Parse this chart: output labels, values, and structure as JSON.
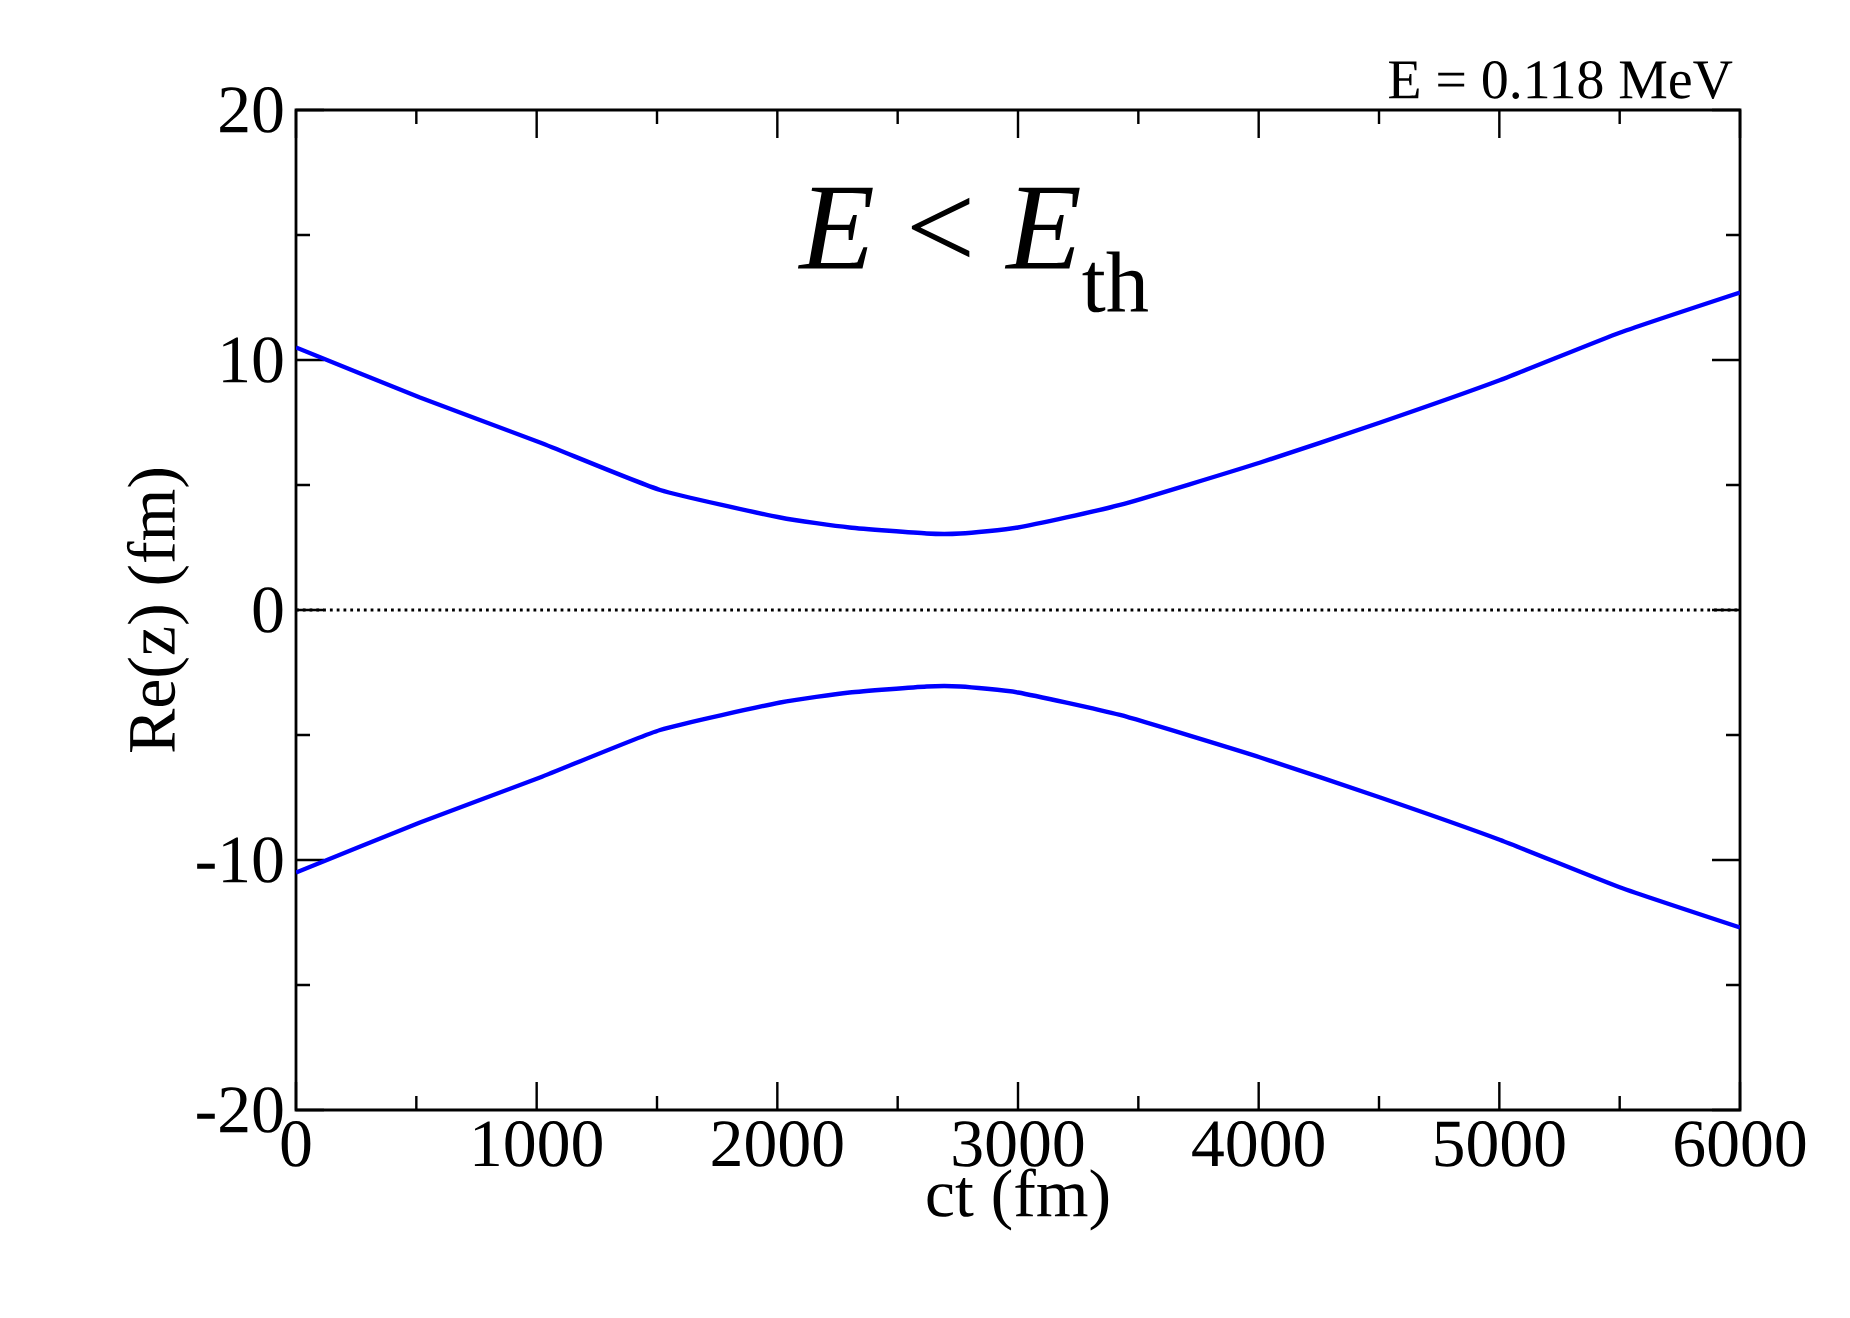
{
  "chart_data": {
    "type": "line",
    "title": "E = 0.118 MeV",
    "xlabel": "ct   (fm)",
    "ylabel": "Re(z)   (fm)",
    "annotations": [
      "*E* < *E*$_{th}$"
    ],
    "xlim": [
      0,
      6000
    ],
    "ylim": [
      -20,
      20
    ],
    "xticks": [
      0,
      1000,
      2000,
      3000,
      4000,
      5000,
      6000
    ],
    "yticks": [
      -20,
      -10,
      0,
      10,
      20
    ],
    "grid": false,
    "marker": "none",
    "line_style": "solid",
    "ref_lines": [
      {
        "axis": "y",
        "value": 0,
        "color": "#000000",
        "line_style": "dotted"
      }
    ],
    "series": [
      {
        "color": "#0000ff",
        "x": [
          0,
          515,
          1014,
          1513,
          2012,
          2300,
          2620,
          2760,
          3000,
          3424,
          4007,
          4505,
          5004,
          5503,
          6000
        ],
        "values": [
          10.5,
          8.5,
          6.7,
          4.8,
          3.7,
          3.3,
          3.06,
          3.06,
          3.3,
          4.2,
          5.9,
          7.5,
          9.2,
          11.1,
          12.7
        ]
      },
      {
        "color": "#0000ff",
        "x": [
          0,
          515,
          1014,
          1513,
          2012,
          2300,
          2620,
          2760,
          3000,
          3424,
          4007,
          4505,
          5004,
          5503,
          6000
        ],
        "values": [
          -10.5,
          -8.5,
          -6.7,
          -4.8,
          -3.7,
          -3.3,
          -3.06,
          -3.06,
          -3.3,
          -4.2,
          -5.9,
          -7.5,
          -9.2,
          -11.1,
          -12.7
        ]
      }
    ]
  }
}
